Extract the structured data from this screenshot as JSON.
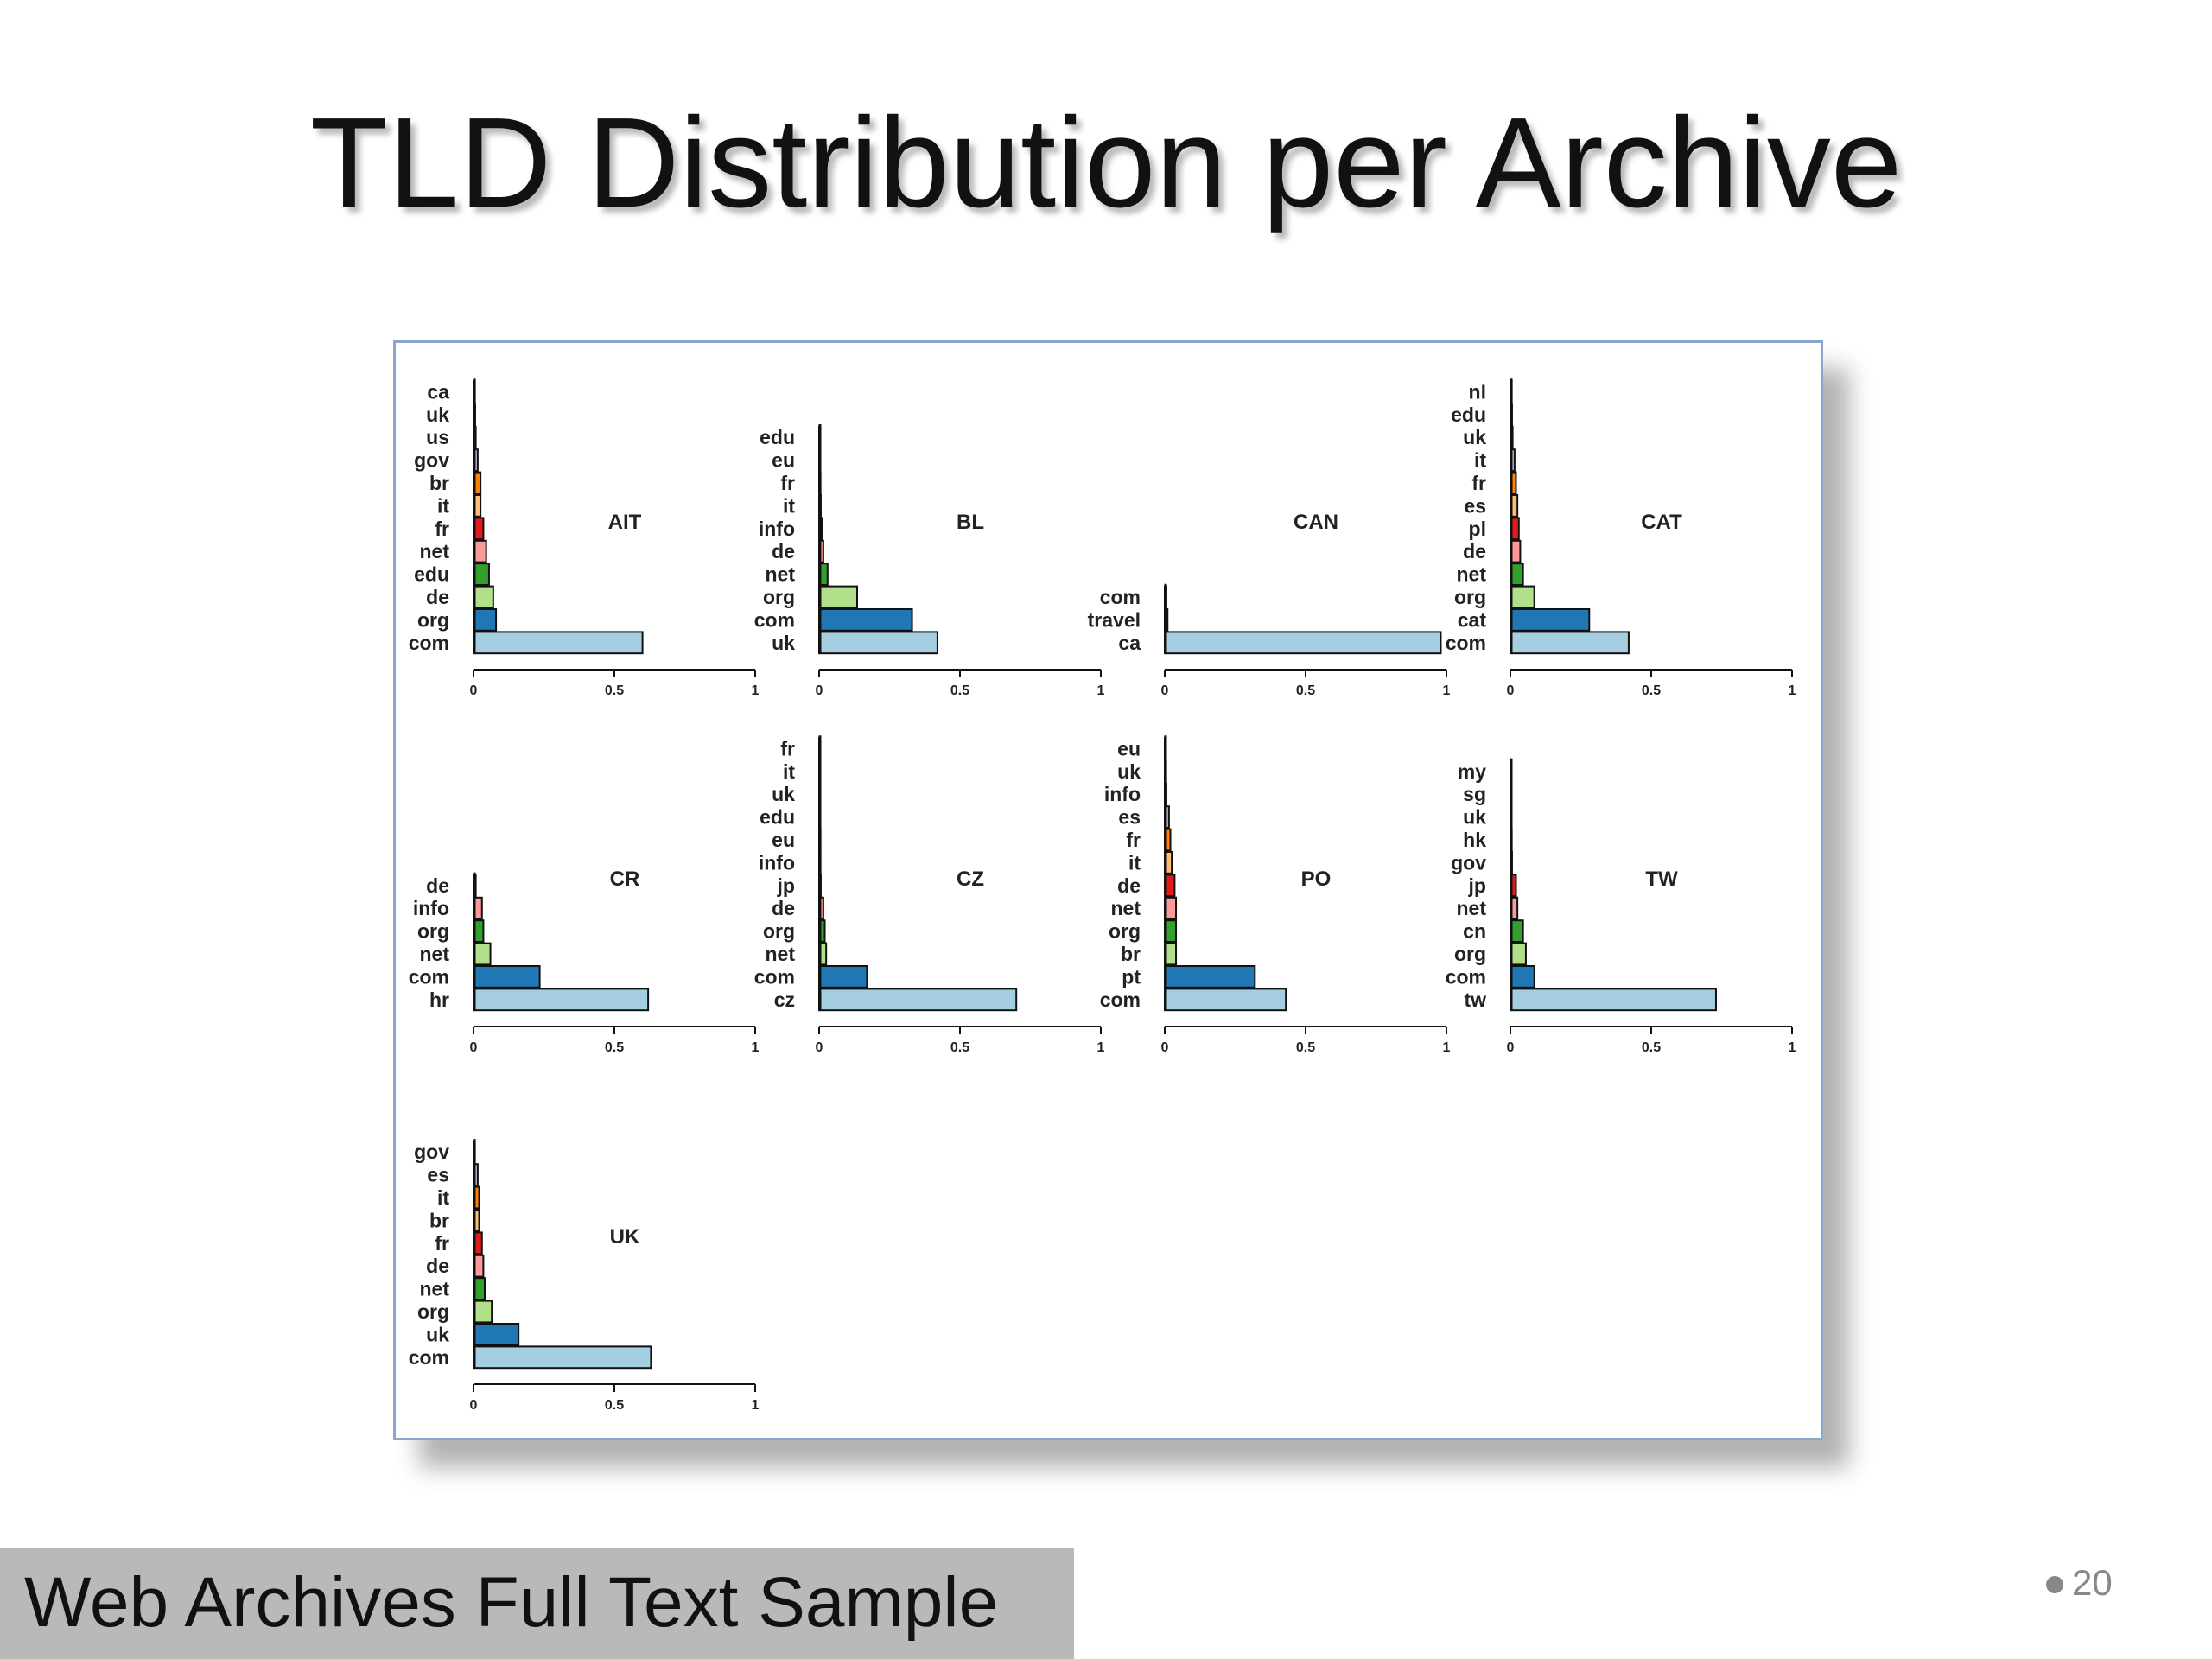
{
  "slide": {
    "title": "TLD Distribution per Archive",
    "footer": "Web Archives Full Text Sample",
    "page_number": "20"
  },
  "colors": {
    "bars": [
      "#a6cee3",
      "#1f78b4",
      "#b2df8a",
      "#33a02c",
      "#fb9a99",
      "#e31a1c",
      "#fdbf6f",
      "#ff7f00",
      "#cab2d6",
      "#6a3d9a",
      "#ffff99",
      "#b15928"
    ],
    "frame_border": "#8aa6cc",
    "footer_band": "#b9b9b9"
  },
  "chart_data": [
    {
      "type": "bar",
      "orientation": "horizontal",
      "title": "AIT",
      "xlim": [
        0,
        1
      ],
      "xticks": [
        "0",
        "0.5",
        "1"
      ],
      "categories": [
        "com",
        "org",
        "de",
        "edu",
        "net",
        "fr",
        "it",
        "br",
        "gov",
        "us",
        "uk",
        "ca"
      ],
      "values": [
        0.6,
        0.08,
        0.07,
        0.055,
        0.045,
        0.035,
        0.025,
        0.025,
        0.015,
        0.008,
        0.006,
        0.005
      ]
    },
    {
      "type": "bar",
      "orientation": "horizontal",
      "title": "BL",
      "xlim": [
        0,
        1
      ],
      "xticks": [
        "0",
        "0.5",
        "1"
      ],
      "categories": [
        "uk",
        "com",
        "org",
        "net",
        "de",
        "info",
        "it",
        "fr",
        "eu",
        "edu"
      ],
      "values": [
        0.42,
        0.33,
        0.135,
        0.03,
        0.015,
        0.01,
        0.006,
        0.005,
        0.004,
        0.004
      ]
    },
    {
      "type": "bar",
      "orientation": "horizontal",
      "title": "CAN",
      "xlim": [
        0,
        1
      ],
      "xticks": [
        "0",
        "0.5",
        "1"
      ],
      "categories": [
        "ca",
        "travel",
        "com"
      ],
      "values": [
        0.98,
        0.01,
        0.006
      ]
    },
    {
      "type": "bar",
      "orientation": "horizontal",
      "title": "CAT",
      "xlim": [
        0,
        1
      ],
      "xticks": [
        "0",
        "0.5",
        "1"
      ],
      "categories": [
        "com",
        "cat",
        "org",
        "net",
        "de",
        "pl",
        "es",
        "fr",
        "it",
        "uk",
        "edu",
        "nl"
      ],
      "values": [
        0.42,
        0.28,
        0.085,
        0.045,
        0.035,
        0.03,
        0.025,
        0.02,
        0.015,
        0.008,
        0.006,
        0.005
      ]
    },
    {
      "type": "bar",
      "orientation": "horizontal",
      "title": "CR",
      "xlim": [
        0,
        1
      ],
      "xticks": [
        "0",
        "0.5",
        "1"
      ],
      "categories": [
        "hr",
        "com",
        "net",
        "org",
        "info",
        "de"
      ],
      "values": [
        0.62,
        0.235,
        0.06,
        0.035,
        0.03,
        0.008
      ]
    },
    {
      "type": "bar",
      "orientation": "horizontal",
      "title": "CZ",
      "xlim": [
        0,
        1
      ],
      "xticks": [
        "0",
        "0.5",
        "1"
      ],
      "categories": [
        "cz",
        "com",
        "net",
        "org",
        "de",
        "jp",
        "info",
        "eu",
        "edu",
        "uk",
        "it",
        "fr"
      ],
      "values": [
        0.7,
        0.17,
        0.025,
        0.02,
        0.015,
        0.006,
        0.005,
        0.005,
        0.004,
        0.004,
        0.004,
        0.003
      ]
    },
    {
      "type": "bar",
      "orientation": "horizontal",
      "title": "PO",
      "xlim": [
        0,
        1
      ],
      "xticks": [
        "0",
        "0.5",
        "1"
      ],
      "categories": [
        "com",
        "pt",
        "br",
        "org",
        "net",
        "de",
        "it",
        "fr",
        "es",
        "info",
        "uk",
        "eu"
      ],
      "values": [
        0.43,
        0.32,
        0.04,
        0.04,
        0.04,
        0.035,
        0.025,
        0.02,
        0.015,
        0.006,
        0.005,
        0.004
      ]
    },
    {
      "type": "bar",
      "orientation": "horizontal",
      "title": "TW",
      "xlim": [
        0,
        1
      ],
      "xticks": [
        "0",
        "0.5",
        "1"
      ],
      "categories": [
        "tw",
        "com",
        "org",
        "cn",
        "net",
        "jp",
        "gov",
        "hk",
        "uk",
        "sg",
        "my"
      ],
      "values": [
        0.73,
        0.085,
        0.055,
        0.045,
        0.025,
        0.02,
        0.006,
        0.005,
        0.004,
        0.004,
        0.003
      ]
    },
    {
      "type": "bar",
      "orientation": "horizontal",
      "title": "UK",
      "xlim": [
        0,
        1
      ],
      "xticks": [
        "0",
        "0.5",
        "1"
      ],
      "categories": [
        "com",
        "uk",
        "org",
        "net",
        "de",
        "fr",
        "br",
        "it",
        "es",
        "gov"
      ],
      "values": [
        0.63,
        0.16,
        0.065,
        0.04,
        0.035,
        0.03,
        0.02,
        0.02,
        0.015,
        0.005
      ]
    }
  ]
}
